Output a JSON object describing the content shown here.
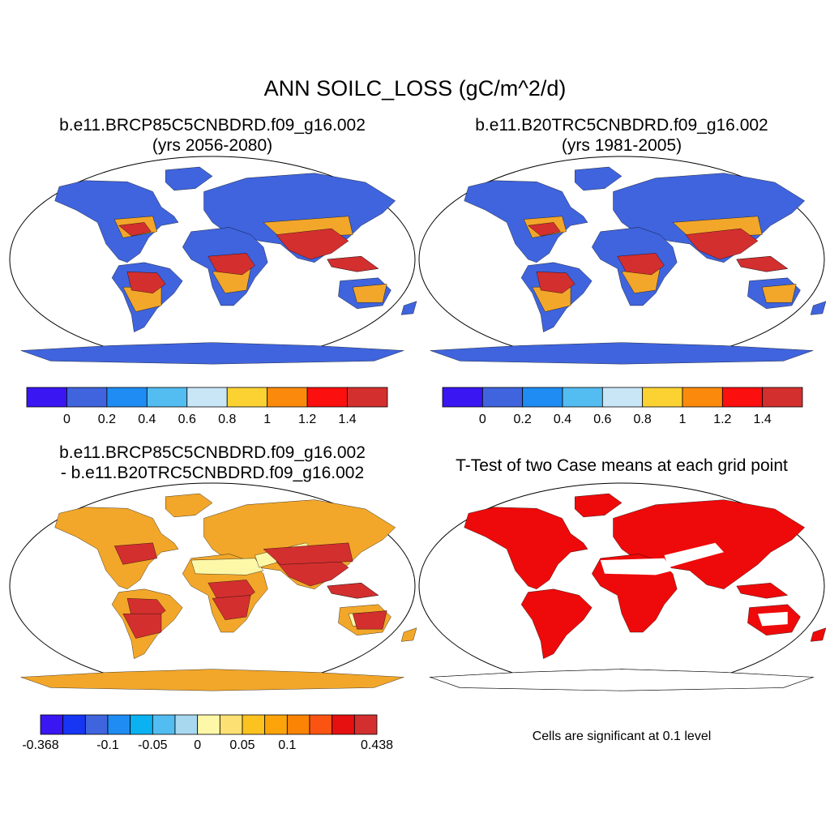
{
  "title": "ANN SOILC_LOSS (gC/m^2/d)",
  "panels": [
    {
      "title_line1": "b.e11.BRCP85C5CNBDRD.f09_g16.002",
      "title_line2": "(yrs 2056-2080)"
    },
    {
      "title_line1": "b.e11.B20TRC5CNBDRD.f09_g16.002",
      "title_line2": "(yrs 1981-2005)"
    },
    {
      "title_line1": "b.e11.BRCP85C5CNBDRD.f09_g16.002",
      "title_line2": "- b.e11.B20TRC5CNBDRD.f09_g16.002"
    },
    {
      "title_line1": "T-Test of two Case means at each grid point",
      "note": "Cells are significant at 0.1 level"
    }
  ],
  "colorbar_main": {
    "colors": [
      "#3a16f2",
      "#3f64dd",
      "#1e8cf2",
      "#53bcf0",
      "#c9e6f7",
      "#fcd233",
      "#fb8a0c",
      "#fb0f0f",
      "#d32f2f"
    ],
    "labels": [
      "0",
      "0.2",
      "0.4",
      "0.6",
      "0.8",
      "1",
      "1.2",
      "1.4"
    ]
  },
  "colorbar_diff": {
    "colors": [
      "#3a16f2",
      "#1636f4",
      "#3f64dd",
      "#1e8cf2",
      "#0ab2f2",
      "#53bcf0",
      "#a8d8f0",
      "#fdf7a8",
      "#fce073",
      "#fcc21f",
      "#fca40a",
      "#fc8405",
      "#fb5412",
      "#e61010",
      "#d32f2f"
    ],
    "labels": [
      {
        "text": "-0.368",
        "index": 0
      },
      {
        "text": "-0.1",
        "index": 3
      },
      {
        "text": "-0.05",
        "index": 5
      },
      {
        "text": "0",
        "index": 7
      },
      {
        "text": "0.05",
        "index": 9
      },
      {
        "text": "0.1",
        "index": 11
      },
      {
        "text": "0.438",
        "index": 15
      }
    ]
  },
  "map_colors": {
    "ocean": "#ffffff",
    "low": "#3f64dd",
    "mid": "#f2a72a",
    "high": "#d32f2f",
    "diff_low": "#fdf7a8",
    "diff_high": "#d32f2f",
    "significant": "#ee0a0a"
  }
}
